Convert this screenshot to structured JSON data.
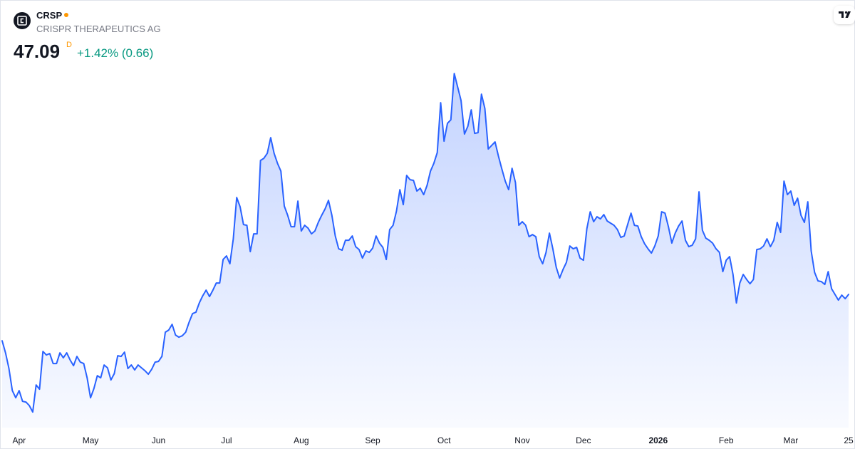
{
  "header": {
    "symbol": "CRSP",
    "name": "CRISPR THERAPEUTICS AG",
    "price": "47.09",
    "interval": "D",
    "change": "+1.42% (0.66)"
  },
  "chart_data": {
    "type": "area",
    "color": "#2962ff",
    "values": [
      40.59,
      38.89,
      36.69,
      33.59,
      32.59,
      33.59,
      32.09,
      31.99,
      31.49,
      30.59,
      34.39,
      33.79,
      39.09,
      38.59,
      38.79,
      37.39,
      37.39,
      38.89,
      38.19,
      38.89,
      37.89,
      37.09,
      38.39,
      37.59,
      37.39,
      35.39,
      32.59,
      33.89,
      35.69,
      35.39,
      37.19,
      36.79,
      35.09,
      35.99,
      38.49,
      38.39,
      38.99,
      36.69,
      37.19,
      36.49,
      37.19,
      36.79,
      36.39,
      35.89,
      36.59,
      37.59,
      37.69,
      38.39,
      41.79,
      42.09,
      42.89,
      41.39,
      41.09,
      41.29,
      41.79,
      43.19,
      44.39,
      44.59,
      45.89,
      46.89,
      47.69,
      46.79,
      47.69,
      48.69,
      48.69,
      51.99,
      52.49,
      51.39,
      54.89,
      60.69,
      59.39,
      56.89,
      56.79,
      53.09,
      55.59,
      55.59,
      65.89,
      66.19,
      66.89,
      69.09,
      66.89,
      65.49,
      64.39,
      59.49,
      58.19,
      56.59,
      56.59,
      60.19,
      55.99,
      56.79,
      56.39,
      55.59,
      55.99,
      57.19,
      58.19,
      59.09,
      60.29,
      58.19,
      55.29,
      53.49,
      53.29,
      54.69,
      54.69,
      55.29,
      53.79,
      53.39,
      52.19,
      53.19,
      52.99,
      53.59,
      55.29,
      54.29,
      53.69,
      51.99,
      56.19,
      56.79,
      58.79,
      61.79,
      59.69,
      63.79,
      63.19,
      63.09,
      61.59,
      61.99,
      61.09,
      62.39,
      64.39,
      65.49,
      66.99,
      73.99,
      68.59,
      71.09,
      71.59,
      78.09,
      76.19,
      74.29,
      69.59,
      70.69,
      72.99,
      69.69,
      69.79,
      75.19,
      73.19,
      67.49,
      67.99,
      68.49,
      66.49,
      64.69,
      62.99,
      61.79,
      64.79,
      62.79,
      56.79,
      57.29,
      56.79,
      55.19,
      55.49,
      55.19,
      52.39,
      51.39,
      52.99,
      55.69,
      53.49,
      50.89,
      49.39,
      50.59,
      51.59,
      53.89,
      53.49,
      53.69,
      52.19,
      51.89,
      56.29,
      58.69,
      57.29,
      57.99,
      57.69,
      58.29,
      57.39,
      57.09,
      56.79,
      56.19,
      55.09,
      55.29,
      56.89,
      58.49,
      56.79,
      56.69,
      55.19,
      54.19,
      53.49,
      52.89,
      53.89,
      55.29,
      58.69,
      58.49,
      56.59,
      54.29,
      55.69,
      56.69,
      57.39,
      54.69,
      53.79,
      53.99,
      54.89,
      61.49,
      56.09,
      54.99,
      54.69,
      54.29,
      53.49,
      52.99,
      50.29,
      51.89,
      52.39,
      49.89,
      45.89,
      48.69,
      49.89,
      49.19,
      48.59,
      49.19,
      53.39,
      53.49,
      53.89,
      54.89,
      53.79,
      54.69,
      57.19,
      55.79,
      62.99,
      61.09,
      61.59,
      59.59,
      60.59,
      58.19,
      57.19,
      60.09,
      53.19,
      50.19,
      48.99,
      48.89,
      48.49,
      50.29,
      47.89,
      47.09,
      46.29,
      46.99,
      46.49,
      47.09
    ],
    "ylim": [
      28,
      80
    ],
    "xticks": [
      {
        "value": 5,
        "label": "Apr"
      },
      {
        "value": 26,
        "label": "May"
      },
      {
        "value": 46,
        "label": "Jun"
      },
      {
        "value": 66,
        "label": "Jul"
      },
      {
        "value": 88,
        "label": "Aug"
      },
      {
        "value": 109,
        "label": "Sep"
      },
      {
        "value": 130,
        "label": "Oct"
      },
      {
        "value": 153,
        "label": "Nov"
      },
      {
        "value": 171,
        "label": "Dec"
      },
      {
        "value": 193,
        "label": "2026"
      },
      {
        "value": 213,
        "label": "Feb"
      },
      {
        "value": 232,
        "label": "Mar"
      },
      {
        "value": 249,
        "label": "25"
      }
    ]
  }
}
